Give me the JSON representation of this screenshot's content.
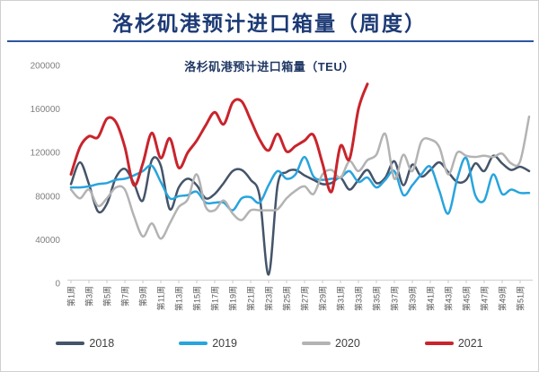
{
  "window": {
    "title": "洛杉矶港预计进口箱量（周度）"
  },
  "chart_data": {
    "type": "line",
    "title": "洛杉矶港预计进口箱量（TEU）",
    "xlabel": "",
    "ylabel": "",
    "ylim": [
      0,
      200000
    ],
    "y_ticks": [
      0,
      40000,
      80000,
      120000,
      160000,
      200000
    ],
    "x_tick_labels": [
      "第1周",
      "第3周",
      "第5周",
      "第7周",
      "第9周",
      "第11周",
      "第13周",
      "第15周",
      "第17周",
      "第19周",
      "第21周",
      "第23周",
      "第25周",
      "第27周",
      "第29周",
      "第31周",
      "第33周",
      "第35周",
      "第37周",
      "第39周",
      "第41周",
      "第43周",
      "第45周",
      "第47周",
      "第49周",
      "第51周"
    ],
    "grid": false,
    "line_style": "smooth",
    "legend_position": "bottom",
    "axis_color": "#cfcfcf",
    "tick_label_color": "#595959",
    "y_label_color": "#7f7f7f",
    "series": [
      {
        "name": "2018",
        "color": "#44546A",
        "values": [
          91000,
          111000,
          91000,
          66000,
          73000,
          97000,
          105000,
          92000,
          76000,
          113000,
          108000,
          68000,
          88000,
          96000,
          90000,
          78000,
          82000,
          92000,
          103000,
          104000,
          95000,
          80000,
          8000,
          90000,
          102000,
          104000,
          99000,
          95000,
          91000,
          92000,
          97000,
          86000,
          95000,
          104000,
          92000,
          97000,
          112000,
          90000,
          109000,
          98000,
          104000,
          111000,
          102000,
          93000,
          95000,
          110000,
          103000,
          117000,
          110000,
          104000,
          107000,
          103000
        ]
      },
      {
        "name": "2019",
        "color": "#28A4DE",
        "values": [
          88000,
          88000,
          89000,
          91000,
          92000,
          95000,
          96000,
          99000,
          103000,
          108000,
          93000,
          78000,
          80000,
          81000,
          84000,
          74000,
          74000,
          74000,
          67000,
          78000,
          79000,
          74000,
          90000,
          103000,
          96000,
          100000,
          116000,
          98000,
          95000,
          96000,
          97000,
          103000,
          93000,
          97000,
          88000,
          95000,
          103000,
          81000,
          90000,
          100000,
          107000,
          85000,
          64000,
          96000,
          115000,
          81000,
          76000,
          100000,
          82000,
          86000,
          83000,
          83000
        ]
      },
      {
        "name": "2020",
        "color": "#B3B3B3",
        "values": [
          86000,
          78000,
          86000,
          71000,
          78000,
          88000,
          86000,
          62000,
          43000,
          55000,
          41000,
          55000,
          70000,
          77000,
          100000,
          70000,
          67000,
          76000,
          64000,
          58000,
          67000,
          67000,
          67000,
          68000,
          78000,
          85000,
          89000,
          82000,
          100000,
          104000,
          97000,
          112000,
          103000,
          113000,
          118000,
          137000,
          96000,
          118000,
          103000,
          130000,
          132000,
          125000,
          100000,
          120000,
          117000,
          116000,
          117000,
          116000,
          119000,
          110000,
          112000,
          153000
        ]
      },
      {
        "name": "2021",
        "color": "#C9242C",
        "values": [
          100000,
          125000,
          135000,
          134000,
          151000,
          148000,
          125000,
          90000,
          110000,
          138000,
          115000,
          133000,
          106000,
          120000,
          131000,
          145000,
          157000,
          146000,
          166000,
          167000,
          150000,
          132000,
          122000,
          137000,
          121000,
          126000,
          131000,
          136000,
          110000,
          84000,
          126000,
          114000,
          160000,
          183000
        ]
      }
    ]
  }
}
